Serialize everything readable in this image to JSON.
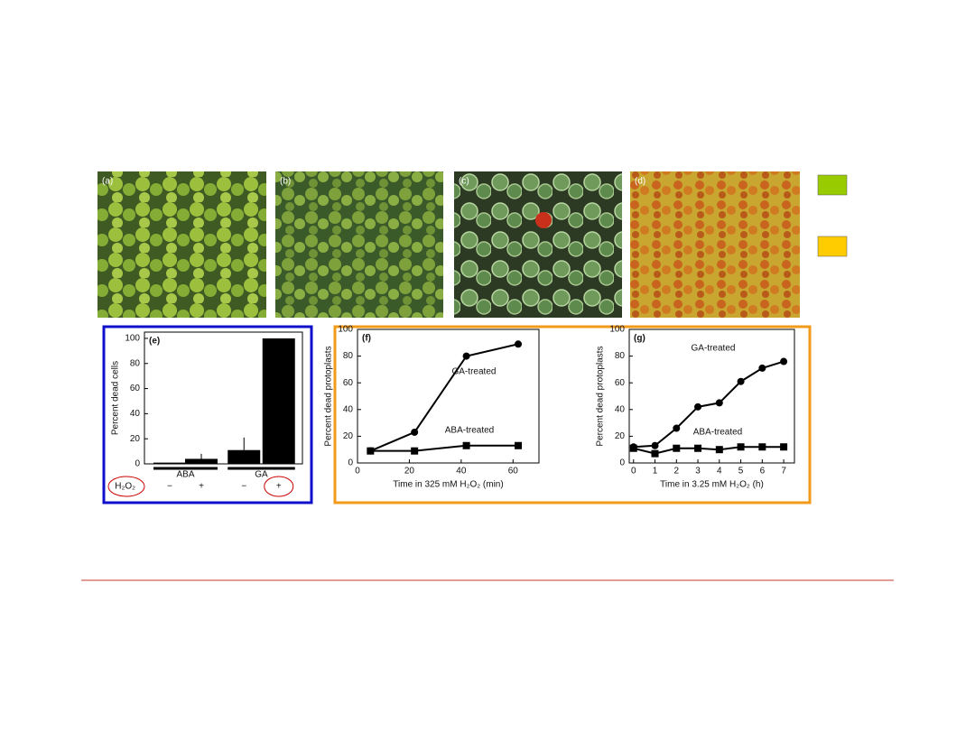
{
  "micrographs": [
    {
      "label": "(a)"
    },
    {
      "label": "(b)"
    },
    {
      "label": "(c)"
    },
    {
      "label": "(d)"
    }
  ],
  "chart_data": [
    {
      "type": "bar",
      "title": "(e)",
      "y_label": "Percent dead cells",
      "categories": [
        "−",
        "+",
        "−",
        "+"
      ],
      "groups": [
        "ABA",
        "GA"
      ],
      "row_label": "H₂O₂",
      "values": [
        1,
        4,
        11,
        100
      ],
      "errors": [
        0,
        4,
        10,
        0
      ],
      "color": "#000000",
      "ylim": [
        0,
        105
      ],
      "yticks": [
        0,
        20,
        40,
        60,
        80,
        100
      ]
    },
    {
      "type": "line",
      "title": "(f)",
      "y_label": "Percent dead protoplasts",
      "x_label": "Time in 325 mM H₂O₂ (min)",
      "xlim": [
        0,
        70
      ],
      "xticks": [
        0,
        20,
        40,
        60
      ],
      "ylim": [
        0,
        100
      ],
      "yticks": [
        0,
        20,
        40,
        60,
        80,
        100
      ],
      "series": [
        {
          "name": "GA-treated",
          "color": "#000000",
          "marker": "circle",
          "x": [
            5,
            22,
            42,
            62
          ],
          "values": [
            9,
            23,
            80,
            89
          ]
        },
        {
          "name": "ABA-treated",
          "color": "#000000",
          "marker": "square",
          "x": [
            5,
            22,
            42,
            62
          ],
          "values": [
            9,
            9,
            13,
            13
          ]
        }
      ]
    },
    {
      "type": "line",
      "title": "(g)",
      "y_label": "Percent dead protoplasts",
      "x_label": "Time in 3.25 mM H₂O₂ (h)",
      "xlim": [
        -0.2,
        7.5
      ],
      "xticks": [
        0,
        1,
        2,
        3,
        4,
        5,
        6,
        7
      ],
      "ylim": [
        0,
        100
      ],
      "yticks": [
        0,
        20,
        40,
        60,
        80,
        100
      ],
      "series": [
        {
          "name": "GA-treated",
          "color": "#000000",
          "marker": "circle",
          "x": [
            0,
            1,
            2,
            3,
            4,
            5,
            6,
            7
          ],
          "values": [
            12,
            13,
            26,
            42,
            45,
            61,
            71,
            76
          ]
        },
        {
          "name": "ABA-treated",
          "color": "#000000",
          "marker": "square",
          "x": [
            0,
            1,
            2,
            3,
            4,
            5,
            6,
            7
          ],
          "values": [
            11,
            7,
            11,
            11,
            10,
            12,
            12,
            12
          ]
        }
      ]
    }
  ]
}
